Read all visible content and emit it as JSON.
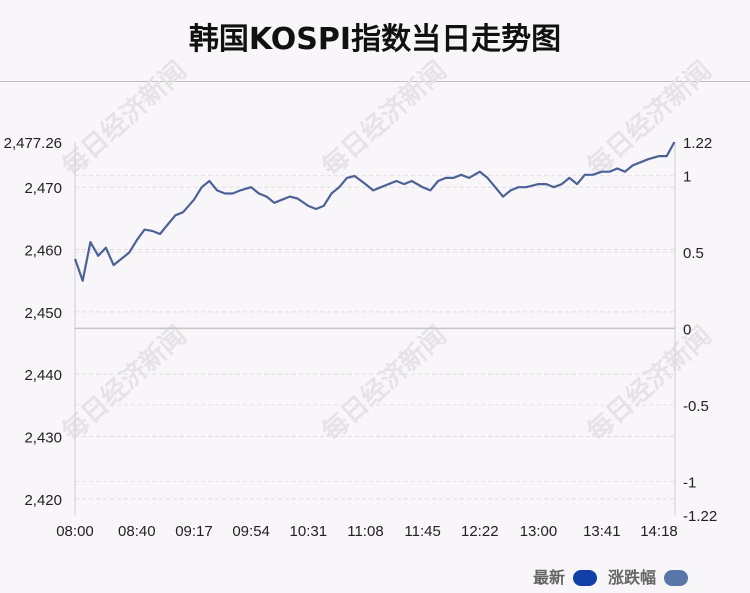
{
  "title": "韩国KOSPI指数当日走势图",
  "watermark": "每日经济新闻",
  "legend": [
    {
      "label": "最新",
      "color": "#1140a8"
    },
    {
      "label": "涨跌幅",
      "color": "#5a76a8"
    }
  ],
  "chart_data": {
    "type": "line",
    "x_ticks": [
      "08:00",
      "08:40",
      "09:17",
      "09:54",
      "10:31",
      "11:08",
      "11:45",
      "12:22",
      "13:00",
      "13:41",
      "14:18"
    ],
    "y_left_ticks": [
      "2,477.26",
      "2,470",
      "2,460",
      "2,450",
      "2,440",
      "2,430",
      "2,420"
    ],
    "y_left_tick_values": [
      2477.26,
      2470,
      2460,
      2450,
      2440,
      2430,
      2420
    ],
    "y_right_ticks": [
      "1.22",
      "1",
      "0.5",
      "0",
      "-0.5",
      "-1",
      "-1.22"
    ],
    "y_right_tick_values": [
      1.22,
      1,
      0.5,
      0,
      -0.5,
      -1,
      -1.22
    ],
    "ylim": [
      2417.4,
      2477.26
    ],
    "y_right_lim": [
      -1.22,
      1.22
    ],
    "prev_close": 2447.35,
    "line_color": "#4c6296",
    "series": [
      {
        "x": [
          "08:00",
          "08:05",
          "08:10",
          "08:15",
          "08:20",
          "08:25",
          "08:30",
          "08:35",
          "08:40",
          "08:45",
          "08:50",
          "08:55",
          "09:00",
          "09:05",
          "09:10",
          "09:17",
          "09:22",
          "09:27",
          "09:32",
          "09:37",
          "09:42",
          "09:47",
          "09:54",
          "09:59",
          "10:04",
          "10:09",
          "10:14",
          "10:19",
          "10:24",
          "10:31",
          "10:36",
          "10:41",
          "10:46",
          "10:51",
          "10:56",
          "11:01",
          "11:08",
          "11:13",
          "11:18",
          "11:23",
          "11:28",
          "11:33",
          "11:38",
          "11:45",
          "11:50",
          "11:55",
          "12:00",
          "12:05",
          "12:10",
          "12:15",
          "12:22",
          "12:27",
          "12:32",
          "12:37",
          "12:42",
          "12:47",
          "12:52",
          "13:00",
          "13:05",
          "13:10",
          "13:15",
          "13:20",
          "13:25",
          "13:30",
          "13:35",
          "13:41",
          "13:46",
          "13:51",
          "13:56",
          "14:01",
          "14:06",
          "14:11",
          "14:18",
          "14:23",
          "14:28"
        ],
        "values": [
          2458.5,
          2455.0,
          2461.2,
          2459.0,
          2460.3,
          2457.5,
          2458.5,
          2459.5,
          2461.5,
          2463.2,
          2463.0,
          2462.5,
          2464.0,
          2465.5,
          2466.0,
          2468.0,
          2470.0,
          2471.0,
          2469.5,
          2469.0,
          2469.0,
          2469.5,
          2470.0,
          2469.0,
          2468.5,
          2467.5,
          2468.0,
          2468.5,
          2468.2,
          2467.0,
          2466.5,
          2467.0,
          2469.0,
          2470.0,
          2471.5,
          2471.8,
          2470.5,
          2469.5,
          2470.0,
          2470.5,
          2471.0,
          2470.5,
          2471.0,
          2470.0,
          2469.5,
          2471.0,
          2471.5,
          2471.5,
          2472.0,
          2471.5,
          2472.5,
          2471.5,
          2470.0,
          2468.5,
          2469.5,
          2470.0,
          2470.0,
          2470.5,
          2470.5,
          2470.0,
          2470.5,
          2471.5,
          2470.5,
          2472.0,
          2472.0,
          2472.5,
          2472.5,
          2473.0,
          2472.5,
          2473.5,
          2474.0,
          2474.5,
          2475.0,
          2475.0,
          2477.26
        ]
      }
    ]
  }
}
